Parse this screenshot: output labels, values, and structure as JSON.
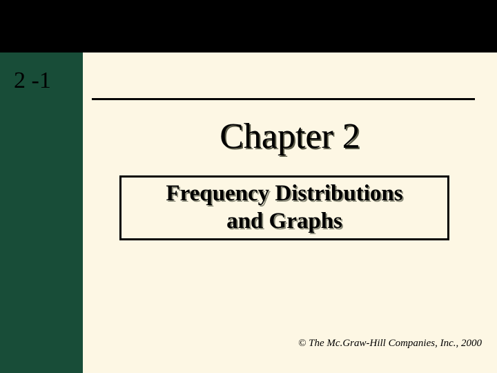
{
  "colors": {
    "background": "#fdf7e4",
    "top_band": "#000000",
    "left_band": "#184d38",
    "text": "#000000",
    "shadow_title": "#5a5a48",
    "shadow_subtitle": "#8a8a78",
    "rule": "#000000",
    "box_border": "#000000"
  },
  "section_number": "2 -1",
  "chapter_title": "Chapter 2",
  "subtitle_line1": "Frequency Distributions",
  "subtitle_line2": "and Graphs",
  "copyright": "© The Mc.Graw-Hill Companies, Inc., 2000",
  "typography": {
    "section_number_fontsize": 34,
    "chapter_title_fontsize": 52,
    "subtitle_fontsize": 33,
    "copyright_fontsize": 15,
    "font_family": "Times New Roman"
  },
  "layout": {
    "slide_width": 720,
    "slide_height": 540,
    "top_band_height": 76,
    "left_band_width": 120,
    "rule_width": 555,
    "rule_thickness": 3,
    "subtitle_box_width": 478,
    "subtitle_box_height": 94,
    "subtitle_box_border": 3
  }
}
